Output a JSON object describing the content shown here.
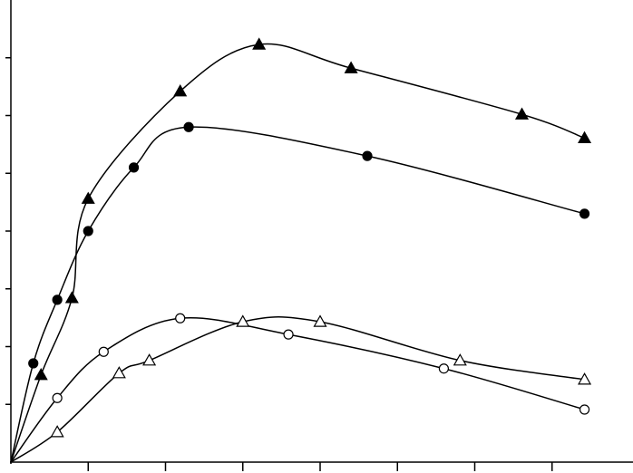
{
  "chart_data": {
    "type": "scatter",
    "xlim": [
      0,
      8
    ],
    "ylim": [
      0,
      8
    ],
    "xticks": [
      1,
      2,
      3,
      4,
      5,
      6,
      7
    ],
    "yticks": [
      1,
      2,
      3,
      4,
      5,
      6,
      7
    ],
    "series": [
      {
        "marker": "triangle",
        "filled": true,
        "color": "#000000",
        "x": [
          0.39,
          0.79,
          1.0,
          2.19,
          3.21,
          4.4,
          6.61,
          7.42
        ],
        "values": [
          1.51,
          2.84,
          4.56,
          6.42,
          7.23,
          6.82,
          6.02,
          5.61
        ]
      },
      {
        "marker": "circle",
        "filled": true,
        "color": "#000000",
        "x": [
          0.29,
          0.6,
          1.0,
          1.59,
          2.3,
          4.61,
          7.42
        ],
        "values": [
          1.71,
          2.81,
          4.0,
          5.1,
          5.8,
          5.3,
          4.3
        ]
      },
      {
        "marker": "circle",
        "filled": false,
        "color": "#000000",
        "x": [
          0.6,
          1.2,
          2.19,
          3.59,
          5.6,
          7.42
        ],
        "values": [
          1.11,
          1.91,
          2.49,
          2.21,
          1.62,
          0.91
        ]
      },
      {
        "marker": "triangle",
        "filled": false,
        "color": "#000000",
        "x": [
          0.6,
          1.4,
          1.79,
          3.0,
          4.0,
          5.81,
          7.42
        ],
        "values": [
          0.52,
          1.54,
          1.76,
          2.43,
          2.43,
          1.76,
          1.43
        ]
      }
    ]
  }
}
